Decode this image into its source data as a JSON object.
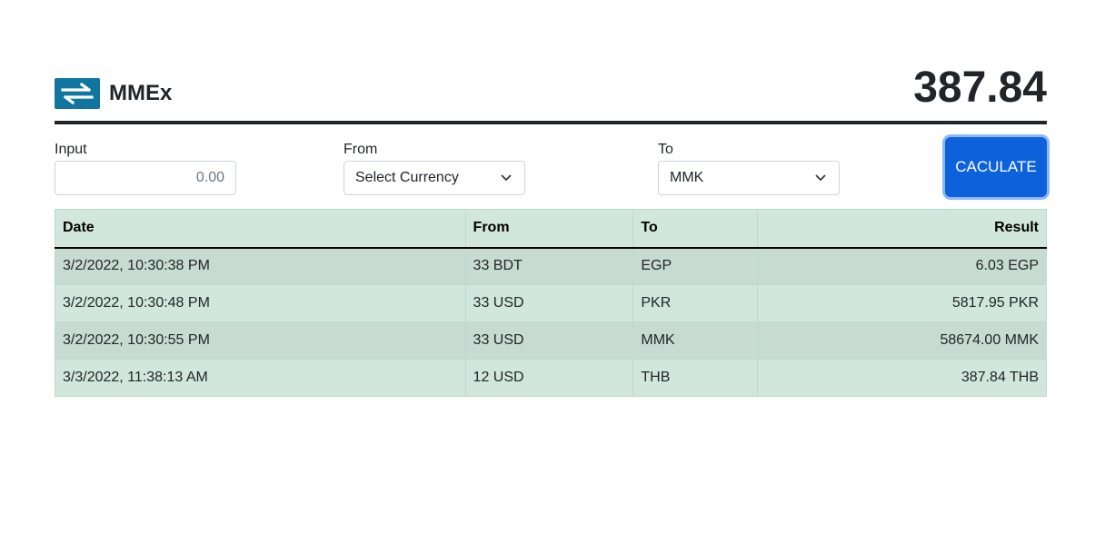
{
  "brand": {
    "name": "MMEx",
    "icon": "exchange-arrows-icon",
    "icon_color": "#10759f"
  },
  "total": "387.84",
  "form": {
    "input_label": "Input",
    "input_placeholder": "0.00",
    "from_label": "From",
    "from_value": "Select Currency",
    "to_label": "To",
    "to_value": "MMK",
    "calculate_label": "CACULATE"
  },
  "colors": {
    "accent": "#0d62db",
    "table_bg": "#d1e7dd",
    "divider": "#212529"
  },
  "table": {
    "headers": {
      "date": "Date",
      "from": "From",
      "to": "To",
      "result": "Result"
    },
    "rows": [
      {
        "date": "3/2/2022, 10:30:38 PM",
        "from": "33 BDT",
        "to": "EGP",
        "result": "6.03 EGP"
      },
      {
        "date": "3/2/2022, 10:30:48 PM",
        "from": "33 USD",
        "to": "PKR",
        "result": "5817.95 PKR"
      },
      {
        "date": "3/2/2022, 10:30:55 PM",
        "from": "33 USD",
        "to": "MMK",
        "result": "58674.00 MMK"
      },
      {
        "date": "3/3/2022, 11:38:13 AM",
        "from": "12 USD",
        "to": "THB",
        "result": "387.84 THB"
      }
    ]
  }
}
